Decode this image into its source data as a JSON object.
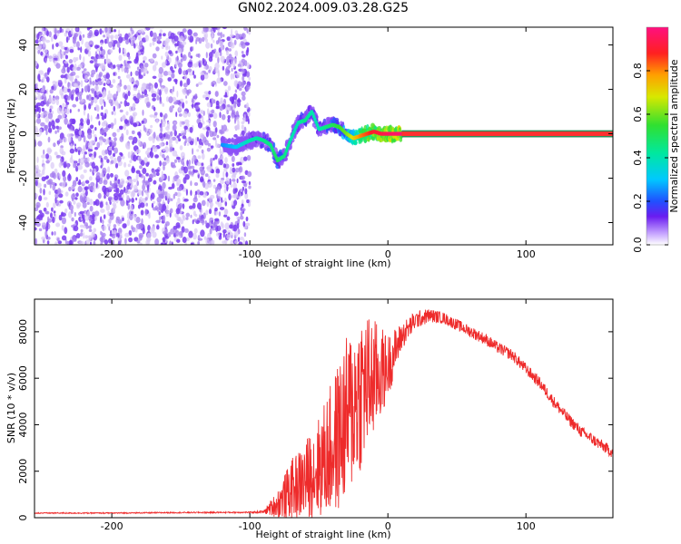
{
  "title": "GN02.2024.009.03.28.G25",
  "colors": {
    "ridge_mid": "#ff2222",
    "snr_line": "#ee2b2b",
    "speckle": "#7a3cf0"
  },
  "chart_data": [
    {
      "type": "heatmap",
      "xlabel": "Height of straight line (km)",
      "ylabel": "Frequency (Hz)",
      "xlim": [
        -256,
        163
      ],
      "ylim": [
        -50,
        48
      ],
      "xticks": [
        -200,
        -100,
        0,
        100
      ],
      "yticks": [
        -40,
        -20,
        0,
        20,
        40
      ],
      "noise_region_x": [
        -256,
        -100
      ],
      "ridge": {
        "x": [
          -120,
          -110,
          -100,
          -95,
          -90,
          -85,
          -80,
          -75,
          -70,
          -65,
          -60,
          -55,
          -50,
          -45,
          -40,
          -35,
          -30,
          -25,
          -20,
          -15,
          -10,
          -5,
          0,
          10,
          163
        ],
        "y": [
          -5,
          -6,
          -3,
          -2,
          -3,
          -5,
          -12,
          -10,
          -2,
          5,
          6,
          10,
          2,
          3,
          4,
          3,
          0,
          -2,
          -1,
          0,
          1,
          0,
          0,
          0,
          0
        ],
        "amplitude": [
          0.25,
          0.3,
          0.4,
          0.4,
          0.45,
          0.45,
          0.5,
          0.45,
          0.4,
          0.4,
          0.45,
          0.4,
          0.4,
          0.45,
          0.5,
          0.55,
          0.6,
          0.7,
          0.8,
          0.85,
          0.9,
          0.92,
          0.95,
          0.98,
          1.0
        ]
      },
      "colorbar": {
        "label": "Normalized spectral amplitude",
        "range": [
          0,
          1
        ],
        "ticks": [
          0.0,
          0.2,
          0.4,
          0.6,
          0.8
        ]
      }
    },
    {
      "type": "line",
      "xlabel": "Height of straight line (km)",
      "ylabel": "SNR (10 * v/v)",
      "xlim": [
        -256,
        163
      ],
      "ylim": [
        0,
        9400
      ],
      "xticks": [
        -200,
        -100,
        0,
        100
      ],
      "yticks": [
        0,
        2000,
        4000,
        6000,
        8000
      ],
      "series": [
        {
          "x": [
            -256,
            -200,
            -150,
            -100,
            -90,
            -80,
            -70,
            -60,
            -50,
            -40,
            -30,
            -20,
            -10,
            0,
            10,
            20,
            30,
            40,
            50,
            60,
            70,
            80,
            90,
            100,
            110,
            120,
            130,
            140,
            150,
            163
          ],
          "y": [
            200,
            200,
            220,
            230,
            250,
            600,
            1200,
            1600,
            2200,
            3000,
            4200,
            5500,
            6000,
            6500,
            7800,
            8500,
            8700,
            8600,
            8300,
            8000,
            7700,
            7300,
            7000,
            6400,
            5800,
            5000,
            4300,
            3700,
            3300,
            2800
          ],
          "spread": [
            25,
            25,
            25,
            30,
            60,
            600,
            1300,
            1700,
            2200,
            3000,
            3600,
            3600,
            2600,
            1400,
            600,
            400,
            300,
            250,
            250,
            250,
            250,
            250,
            250,
            250,
            250,
            250,
            250,
            250,
            250,
            250
          ]
        }
      ]
    }
  ]
}
